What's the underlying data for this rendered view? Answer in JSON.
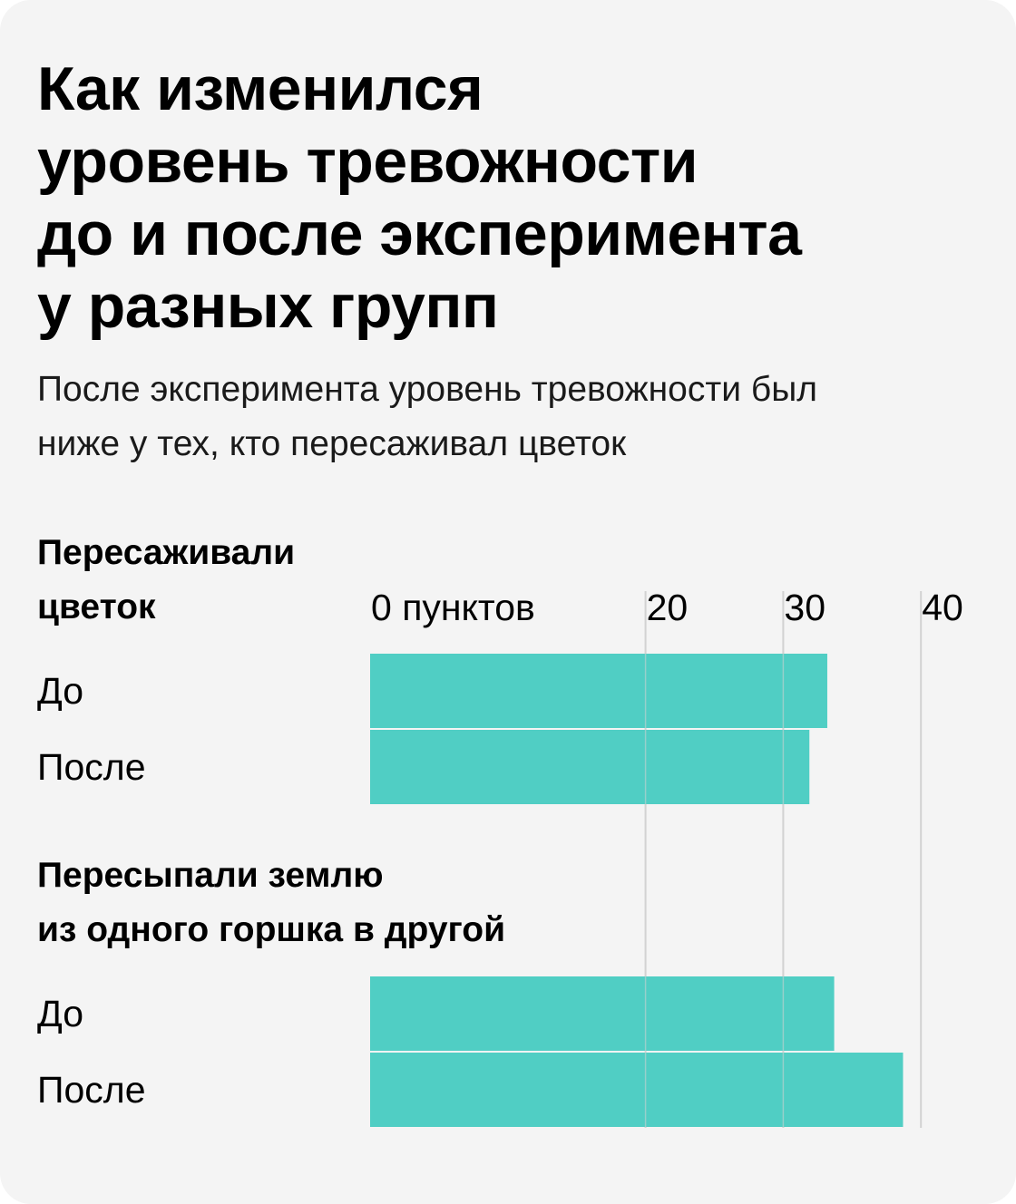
{
  "title_lines": [
    "Как изменился",
    "уровень тревожности",
    "до и после эксперимента",
    "у разных групп"
  ],
  "subtitle_lines": [
    "После эксперимента уровень тревожности был",
    "ниже у тех, кто пересаживал цветок"
  ],
  "colors": {
    "bar": "#50cec4",
    "grid": "#d2d2d2",
    "background": "#f4f4f4"
  },
  "chart_data": {
    "type": "bar",
    "orientation": "horizontal",
    "tick_labels": [
      "0 пунктов",
      "20",
      "30",
      "40"
    ],
    "ticks": [
      0,
      20,
      30,
      40
    ],
    "xlim": [
      0,
      40
    ],
    "grid": true,
    "groups": [
      {
        "label_lines": [
          "Пересаживали",
          "цветок"
        ],
        "bars": [
          {
            "label": "До",
            "value": 33.2
          },
          {
            "label": "После",
            "value": 31.9
          }
        ]
      },
      {
        "label_lines": [
          "Пересыпали землю",
          "из одного горшка в другой"
        ],
        "bars": [
          {
            "label": "До",
            "value": 33.7
          },
          {
            "label": "После",
            "value": 38.7
          }
        ]
      }
    ]
  }
}
